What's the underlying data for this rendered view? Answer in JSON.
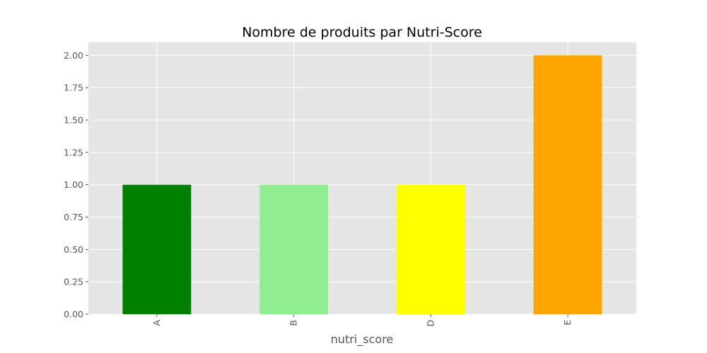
{
  "chart_data": {
    "type": "bar",
    "title": "Nombre de produits par Nutri-Score",
    "xlabel": "nutri_score",
    "ylabel": "",
    "categories": [
      "A",
      "B",
      "D",
      "E"
    ],
    "values": [
      1,
      1,
      1,
      2
    ],
    "bar_colors": [
      "#008000",
      "#90ee90",
      "#ffff00",
      "#ffa500"
    ],
    "ylim": [
      0,
      2.1
    ],
    "yticks": [
      "0.00",
      "0.25",
      "0.50",
      "0.75",
      "1.00",
      "1.25",
      "1.50",
      "1.75",
      "2.00"
    ],
    "ytick_values": [
      0,
      0.25,
      0.5,
      0.75,
      1.0,
      1.25,
      1.5,
      1.75,
      2.0
    ],
    "grid": true,
    "style": "ggplot",
    "background_color": "#e5e5e5",
    "grid_color": "#ffffff",
    "x_tick_rotation": "vertical"
  }
}
